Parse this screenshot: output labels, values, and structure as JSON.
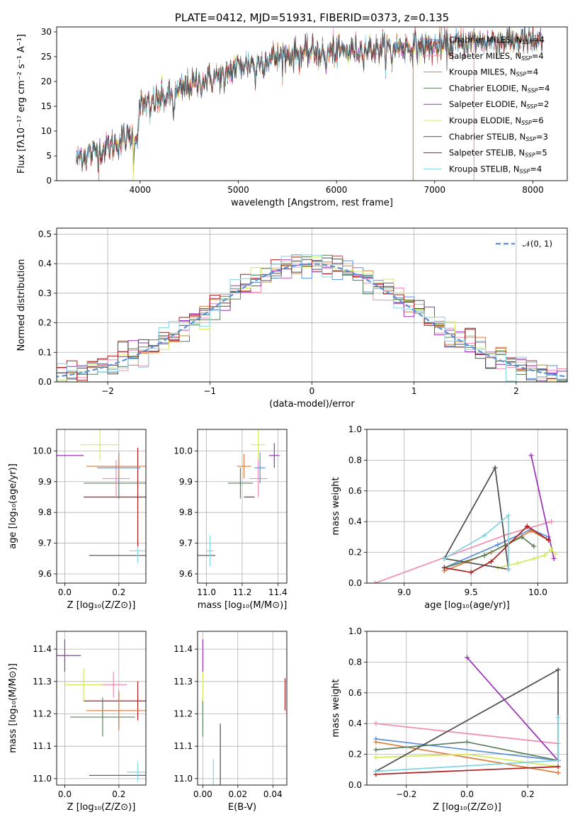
{
  "chart_data": [
    {
      "id": "spectrum",
      "type": "line",
      "title": "PLATE=0412, MJD=51931, FIBERID=0373, z=0.135",
      "xlabel": "wavelength [Angstrom, rest frame]",
      "ylabel": "Flux [fλ10⁻¹⁷ erg cm⁻² s⁻¹ A⁻¹]",
      "xlim": [
        3150,
        8350
      ],
      "ylim": [
        0,
        31
      ],
      "xticks": [
        "4000",
        "5000",
        "6000",
        "7000",
        "8000"
      ],
      "yticks": [
        "0",
        "5",
        "10",
        "15",
        "20",
        "25",
        "30"
      ],
      "continuum": {
        "x": [
          3350,
          3500,
          3650,
          3800,
          3950,
          4000,
          4200,
          4400,
          4600,
          4800,
          5000,
          5200,
          5400,
          5600,
          5800,
          6000,
          6200,
          6400,
          6600,
          6800,
          7000,
          7200,
          7400,
          7600,
          7800,
          8000,
          8100
        ],
        "y": [
          4.5,
          5.5,
          6.5,
          8,
          9.5,
          15,
          16.5,
          18,
          20,
          21,
          23,
          24,
          25,
          25.5,
          26,
          26,
          26.5,
          26.5,
          27,
          27,
          27,
          27.5,
          28,
          28,
          28.5,
          28,
          27.5
        ]
      },
      "legend_position": "upper-right",
      "series": [
        {
          "name": "Chabrier MILES, N",
          "sub": "SSP",
          "n": "=4",
          "color": "#5b8fd8"
        },
        {
          "name": "Salpeter MILES, N",
          "sub": "SSP",
          "n": "=4",
          "color": "#f28ab2"
        },
        {
          "name": "Kroupa MILES, N",
          "sub": "SSP",
          "n": "=4",
          "color": "#e07b39"
        },
        {
          "name": "Chabrier ELODIE, N",
          "sub": "SSP",
          "n": "=4",
          "color": "#5a7f5a"
        },
        {
          "name": "Salpeter ELODIE, N",
          "sub": "SSP",
          "n": "=2",
          "color": "#9b30b8"
        },
        {
          "name": "Kroupa ELODIE, N",
          "sub": "SSP",
          "n": "=6",
          "color": "#d4ea5a"
        },
        {
          "name": "Chabrier STELIB, N",
          "sub": "SSP",
          "n": "=3",
          "color": "#4d4d4d"
        },
        {
          "name": "Salpeter STELIB, N",
          "sub": "SSP",
          "n": "=5",
          "color": "#a81c1c"
        },
        {
          "name": "Kroupa STELIB, N",
          "sub": "SSP",
          "n": "=4",
          "color": "#7fd4e0"
        }
      ]
    },
    {
      "id": "residuals",
      "type": "histogram",
      "xlabel": "(data-model)/error",
      "ylabel": "Normed distribution",
      "xlim": [
        -2.5,
        2.5
      ],
      "ylim": [
        0,
        0.52
      ],
      "xticks": [
        "−2",
        "−1",
        "0",
        "1",
        "2"
      ],
      "yticks": [
        "0.0",
        "0.1",
        "0.2",
        "0.3",
        "0.4",
        "0.5"
      ],
      "legend": "𝒩(0, 1)",
      "bin_width": 0.1
    },
    {
      "id": "age-vs-Z",
      "type": "errorbar",
      "xlabel": "Z [log₁₀(Z/Z⊙)]",
      "ylabel": "age  [log₁₀(age/yr)]",
      "xlim": [
        -0.03,
        0.3
      ],
      "ylim": [
        9.57,
        10.07
      ],
      "xticks": [
        "0.0",
        "0.2"
      ],
      "yticks": [
        "9.6",
        "9.7",
        "9.8",
        "9.9",
        "10.0"
      ],
      "points": [
        {
          "x": 0.27,
          "y": 9.66,
          "xerr": 0.18,
          "yerr": 0.0,
          "color": "#4d4d4d"
        },
        {
          "x": 0.27,
          "y": 9.675,
          "xerr": 0.03,
          "yerr": 0.04,
          "color": "#7fd4e0"
        },
        {
          "x": 0.27,
          "y": 9.85,
          "xerr": 0.2,
          "yerr": 0.16,
          "color": "#a81c1c"
        },
        {
          "x": 0.2,
          "y": 9.895,
          "xerr": 0.13,
          "yerr": 0.05,
          "color": "#5a7f5a"
        },
        {
          "x": 0.19,
          "y": 9.91,
          "xerr": 0.05,
          "yerr": 0.06,
          "color": "#f28ab2"
        },
        {
          "x": 0.2,
          "y": 9.945,
          "xerr": 0.08,
          "yerr": 0.05,
          "color": "#5b8fd8"
        },
        {
          "x": 0.2,
          "y": 9.95,
          "xerr": 0.12,
          "yerr": 0.04,
          "color": "#e07b39"
        },
        {
          "x": 0.13,
          "y": 10.02,
          "xerr": 0.07,
          "yerr": 0.05,
          "color": "#d4ea5a"
        },
        {
          "x": 0.0,
          "y": 9.985,
          "xerr": 0.07,
          "yerr": 0.0,
          "color": "#9b30b8"
        }
      ]
    },
    {
      "id": "age-vs-mass",
      "type": "errorbar",
      "xlabel": "mass [log₁₀(M/M⊙)]",
      "ylabel": "",
      "xlim": [
        10.95,
        11.45
      ],
      "ylim": [
        9.57,
        10.07
      ],
      "xticks": [
        "11.0",
        "11.2",
        "11.4"
      ],
      "yticks": [
        "9.6",
        "9.7",
        "9.8",
        "9.9",
        "10.0"
      ],
      "points": [
        {
          "x": 11.0,
          "y": 9.66,
          "xerr": 0.05,
          "yerr": 0.0,
          "color": "#4d4d4d"
        },
        {
          "x": 11.02,
          "y": 9.675,
          "xerr": 0.02,
          "yerr": 0.05,
          "color": "#7fd4e0"
        },
        {
          "x": 11.24,
          "y": 9.85,
          "xerr": 0.03,
          "yerr": 0.0,
          "color": "#a81c1c"
        },
        {
          "x": 11.19,
          "y": 9.895,
          "xerr": 0.07,
          "yerr": 0.05,
          "color": "#5a7f5a"
        },
        {
          "x": 11.29,
          "y": 9.91,
          "xerr": 0.05,
          "yerr": 0.06,
          "color": "#f28ab2"
        },
        {
          "x": 11.3,
          "y": 9.945,
          "xerr": 0.03,
          "yerr": 0.05,
          "color": "#5b8fd8"
        },
        {
          "x": 11.21,
          "y": 9.95,
          "xerr": 0.04,
          "yerr": 0.04,
          "color": "#e07b39"
        },
        {
          "x": 11.29,
          "y": 10.02,
          "xerr": 0.04,
          "yerr": 0.05,
          "color": "#d4ea5a"
        },
        {
          "x": 11.38,
          "y": 9.985,
          "xerr": 0.03,
          "yerr": 0.04,
          "color": "#9b30b8"
        }
      ]
    },
    {
      "id": "weight-vs-age",
      "type": "line",
      "xlabel": "age  [log₁₀(age/yr)]",
      "ylabel": "mass weight",
      "xlim": [
        8.72,
        10.22
      ],
      "ylim": [
        0,
        1.0
      ],
      "xticks": [
        "9.0",
        "9.5",
        "10.0"
      ],
      "yticks": [
        "0.0",
        "0.2",
        "0.4",
        "0.6",
        "0.8",
        "1.0"
      ],
      "series": [
        {
          "color": "#5b8fd8",
          "x": [
            9.3,
            9.7,
            9.95,
            10.08
          ],
          "y": [
            0.1,
            0.25,
            0.35,
            0.3
          ]
        },
        {
          "color": "#f28ab2",
          "x": [
            8.78,
            9.78,
            10.1
          ],
          "y": [
            0.0,
            0.32,
            0.4
          ]
        },
        {
          "color": "#e07b39",
          "x": [
            9.3,
            9.65,
            9.95,
            10.08
          ],
          "y": [
            0.08,
            0.2,
            0.34,
            0.28
          ]
        },
        {
          "color": "#5a7f5a",
          "x": [
            9.3,
            9.6,
            9.88,
            9.97
          ],
          "y": [
            0.1,
            0.18,
            0.3,
            0.24
          ]
        },
        {
          "color": "#9b30b8",
          "x": [
            9.95,
            10.12
          ],
          "y": [
            0.83,
            0.16
          ]
        },
        {
          "color": "#d4ea5a",
          "x": [
            9.7,
            9.85,
            9.97,
            10.05,
            10.1,
            10.13
          ],
          "y": [
            0.1,
            0.13,
            0.16,
            0.18,
            0.22,
            0.19
          ]
        },
        {
          "color": "#4d4d4d",
          "x": [
            9.3,
            9.68,
            9.78,
            9.3
          ],
          "y": [
            0.16,
            0.75,
            0.09,
            0.16
          ]
        },
        {
          "color": "#a81c1c",
          "x": [
            9.3,
            9.5,
            9.65,
            9.92,
            10.08
          ],
          "y": [
            0.1,
            0.07,
            0.14,
            0.37,
            0.28
          ]
        },
        {
          "color": "#7fd4e0",
          "x": [
            9.3,
            9.6,
            9.78,
            9.78
          ],
          "y": [
            0.16,
            0.31,
            0.44,
            0.09
          ]
        }
      ]
    },
    {
      "id": "mass-vs-Z",
      "type": "errorbar",
      "xlabel": "Z [log₁₀(Z/Z⊙)]",
      "ylabel": "mass [log₁₀(M/M⊙)]",
      "xlim": [
        -0.03,
        0.3
      ],
      "ylim": [
        10.98,
        11.455
      ],
      "xticks": [
        "0.0",
        "0.2"
      ],
      "yticks": [
        "11.0",
        "11.1",
        "11.2",
        "11.3",
        "11.4"
      ],
      "points": [
        {
          "x": 0.27,
          "y": 11.01,
          "xerr": 0.18,
          "yerr": 0.0,
          "color": "#4d4d4d"
        },
        {
          "x": 0.27,
          "y": 11.02,
          "xerr": 0.04,
          "yerr": 0.03,
          "color": "#7fd4e0"
        },
        {
          "x": 0.27,
          "y": 11.24,
          "xerr": 0.2,
          "yerr": 0.06,
          "color": "#a81c1c"
        },
        {
          "x": 0.14,
          "y": 11.19,
          "xerr": 0.12,
          "yerr": 0.06,
          "color": "#5a7f5a"
        },
        {
          "x": 0.2,
          "y": 11.21,
          "xerr": 0.08,
          "yerr": 0.06,
          "color": "#5b8fd8"
        },
        {
          "x": 0.2,
          "y": 11.21,
          "xerr": 0.12,
          "yerr": 0.06,
          "color": "#e07b39"
        },
        {
          "x": 0.18,
          "y": 11.29,
          "xerr": 0.05,
          "yerr": 0.04,
          "color": "#f28ab2"
        },
        {
          "x": 0.07,
          "y": 11.29,
          "xerr": 0.07,
          "yerr": 0.05,
          "color": "#d4ea5a"
        },
        {
          "x": 0.0,
          "y": 11.38,
          "xerr": 0.06,
          "yerr": 0.05,
          "color": "#9b30b8"
        }
      ]
    },
    {
      "id": "mass-vs-ebv",
      "type": "errorbar",
      "xlabel": "E(B-V)",
      "ylabel": "",
      "xlim": [
        -0.003,
        0.048
      ],
      "ylim": [
        10.98,
        11.455
      ],
      "xticks": [
        "0.00",
        "0.02",
        "0.04"
      ],
      "yticks": [
        "11.0",
        "11.1",
        "11.2",
        "11.3",
        "11.4"
      ],
      "points": [
        {
          "x": 0.01,
          "y": 11.07,
          "xerr": 0.0,
          "yerr": 0.1,
          "color": "#4d4d4d"
        },
        {
          "x": 0.006,
          "y": 11.02,
          "xerr": 0.0,
          "yerr": 0.04,
          "color": "#7fd4e0"
        },
        {
          "x": 0.047,
          "y": 11.26,
          "xerr": 0.0,
          "yerr": 0.05,
          "color": "#a81c1c"
        },
        {
          "x": 0.0,
          "y": 11.19,
          "xerr": 0.0,
          "yerr": 0.06,
          "color": "#5a7f5a"
        },
        {
          "x": 0.0,
          "y": 11.29,
          "xerr": 0.0,
          "yerr": 0.05,
          "color": "#d4ea5a"
        },
        {
          "x": 0.0,
          "y": 11.38,
          "xerr": 0.0,
          "yerr": 0.05,
          "color": "#9b30b8"
        }
      ]
    },
    {
      "id": "weight-vs-Z",
      "type": "line",
      "xlabel": "Z [log₁₀(Z/Z⊙)]",
      "ylabel": "mass weight",
      "xlim": [
        -0.33,
        0.33
      ],
      "ylim": [
        0,
        1.0
      ],
      "xticks": [
        "−0.2",
        "0.0",
        "0.2"
      ],
      "yticks": [
        "0.0",
        "0.2",
        "0.4",
        "0.6",
        "0.8",
        "1.0"
      ],
      "series": [
        {
          "color": "#5b8fd8",
          "x": [
            -0.3,
            0.3
          ],
          "y": [
            0.3,
            0.16
          ]
        },
        {
          "color": "#f28ab2",
          "x": [
            -0.3,
            0.3
          ],
          "y": [
            0.4,
            0.27
          ]
        },
        {
          "color": "#e07b39",
          "x": [
            -0.3,
            0.3
          ],
          "y": [
            0.28,
            0.08
          ]
        },
        {
          "color": "#5a7f5a",
          "x": [
            -0.3,
            0.0,
            0.3
          ],
          "y": [
            0.23,
            0.28,
            0.16
          ]
        },
        {
          "color": "#9b30b8",
          "x": [
            0.0,
            0.3
          ],
          "y": [
            0.83,
            0.16
          ]
        },
        {
          "color": "#d4ea5a",
          "x": [
            -0.3,
            0.0,
            0.3
          ],
          "y": [
            0.18,
            0.2,
            0.12
          ]
        },
        {
          "color": "#4d4d4d",
          "x": [
            -0.3,
            0.3,
            0.3
          ],
          "y": [
            0.09,
            0.75,
            0.16
          ]
        },
        {
          "color": "#a81c1c",
          "x": [
            -0.3,
            0.3
          ],
          "y": [
            0.07,
            0.12
          ]
        },
        {
          "color": "#7fd4e0",
          "x": [
            -0.3,
            0.3,
            0.3
          ],
          "y": [
            0.09,
            0.16,
            0.44
          ]
        }
      ]
    }
  ]
}
